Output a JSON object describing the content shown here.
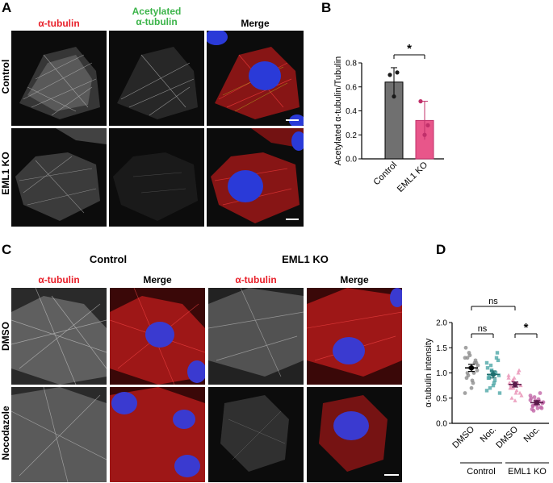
{
  "panels": {
    "A": {
      "label": "A",
      "columns": [
        "α-tubulin",
        "Acetylated\nα-tubulin",
        "Merge"
      ],
      "col_colors": [
        "#e8202a",
        "#3cb44a",
        "#000000"
      ],
      "rows": [
        "Control",
        "EML1 KO"
      ]
    },
    "B": {
      "label": "B",
      "significance": "*"
    },
    "C": {
      "label": "C",
      "groups": [
        "Control",
        "EML1 KO"
      ],
      "columns": [
        "α-tubulin",
        "Merge",
        "α-tubulin",
        "Merge"
      ],
      "rows": [
        "DMSO",
        "Nocodazole"
      ]
    },
    "D": {
      "label": "D",
      "sig_top": "ns",
      "sig_left": "ns",
      "sig_right": "*"
    }
  },
  "chart_data": [
    {
      "type": "bar",
      "panel": "B",
      "categories": [
        "Control",
        "EML1 KO"
      ],
      "values": [
        0.64,
        0.32
      ],
      "errors": [
        0.12,
        0.16
      ],
      "points": [
        [
          0.7,
          0.72,
          0.52
        ],
        [
          0.48,
          0.28,
          0.2
        ]
      ],
      "colors": [
        "#707070",
        "#e8568a"
      ],
      "ylabel": "Acetylated α-tubulin/Tubulin",
      "ylim": [
        0,
        0.8
      ],
      "yticks": [
        "0.0",
        "0.2",
        "0.4",
        "0.6",
        "0.8"
      ],
      "significance": "*"
    },
    {
      "type": "scatter",
      "panel": "D",
      "categories": [
        "DMSO",
        "Noc.",
        "DMSO",
        "Noc."
      ],
      "groups": [
        "Control",
        "EML1 KO"
      ],
      "means": [
        1.1,
        0.97,
        0.77,
        0.41
      ],
      "sem": [
        0.07,
        0.07,
        0.05,
        0.04
      ],
      "colors": [
        "#8c8c8c",
        "#4fa8a8",
        "#e890b4",
        "#c266a8"
      ],
      "points": [
        [
          1.3,
          1.0,
          1.35,
          0.85,
          1.2,
          1.05,
          1.5,
          0.95,
          1.1,
          0.8,
          1.25,
          1.15,
          0.9,
          1.4,
          0.7,
          1.0,
          1.2,
          0.6,
          1.3,
          1.1
        ],
        [
          1.2,
          0.9,
          1.05,
          0.8,
          1.3,
          0.95,
          1.1,
          0.7,
          1.0,
          0.85,
          1.4,
          0.6,
          0.9,
          1.15,
          0.75,
          1.0,
          1.25,
          0.65,
          0.95,
          1.05
        ],
        [
          0.95,
          0.7,
          0.85,
          0.6,
          1.0,
          0.75,
          0.8,
          0.5,
          0.9,
          0.65,
          1.05,
          0.55,
          0.7,
          0.85,
          0.45,
          0.8,
          0.6,
          0.9,
          0.75,
          0.7
        ],
        [
          0.55,
          0.35,
          0.45,
          0.3,
          0.6,
          0.4,
          0.5,
          0.25,
          0.38,
          0.48,
          0.32,
          0.42,
          0.28,
          0.52,
          0.36,
          0.44,
          0.3,
          0.46,
          0.34,
          0.4
        ]
      ],
      "ylabel": "α-tubulin intensity",
      "ylim": [
        0,
        2.0
      ],
      "yticks": [
        "0.0",
        "0.5",
        "1.0",
        "1.5",
        "2.0"
      ],
      "significance": {
        "top": "ns",
        "left": "ns",
        "right": "*"
      }
    }
  ]
}
